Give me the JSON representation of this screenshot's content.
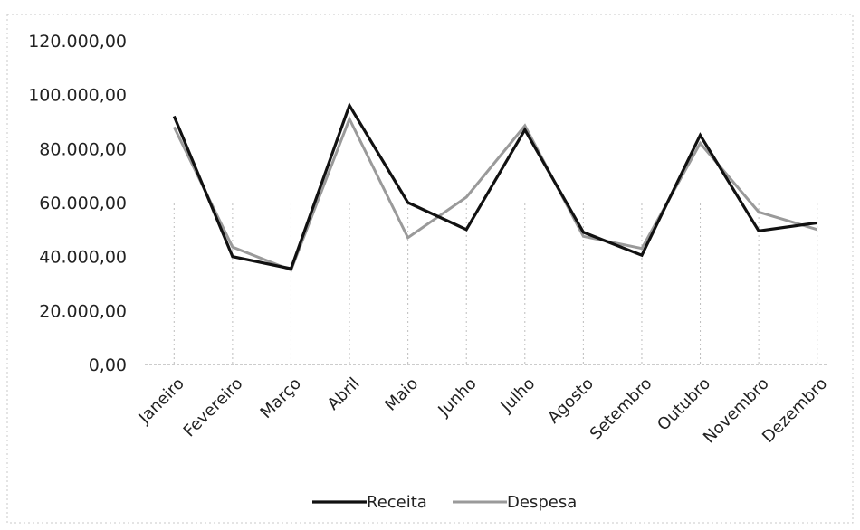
{
  "chart_data": {
    "type": "line",
    "title": "",
    "xlabel": "",
    "ylabel": "",
    "categories": [
      "Janeiro",
      "Fevereiro",
      "Março",
      "Abril",
      "Maio",
      "Junho",
      "Julho",
      "Agosto",
      "Setembro",
      "Outubro",
      "Novembro",
      "Dezembro"
    ],
    "y_ticks": [
      "0,00",
      "20.000,00",
      "40.000,00",
      "60.000,00",
      "80.000,00",
      "100.000,00",
      "120.000,00"
    ],
    "ylim": [
      0,
      120000
    ],
    "grid": "vertical dotted lines at categories",
    "legend_position": "bottom",
    "series": [
      {
        "name": "Receita",
        "color": "#111111",
        "values": [
          92000,
          40000,
          35500,
          96000,
          60000,
          50000,
          87000,
          49000,
          40500,
          85000,
          49500,
          52500
        ]
      },
      {
        "name": "Despesa",
        "color": "#9a9a9a",
        "values": [
          88000,
          43500,
          35000,
          91000,
          47000,
          62000,
          88500,
          47500,
          43000,
          82000,
          56500,
          50000
        ]
      }
    ]
  }
}
